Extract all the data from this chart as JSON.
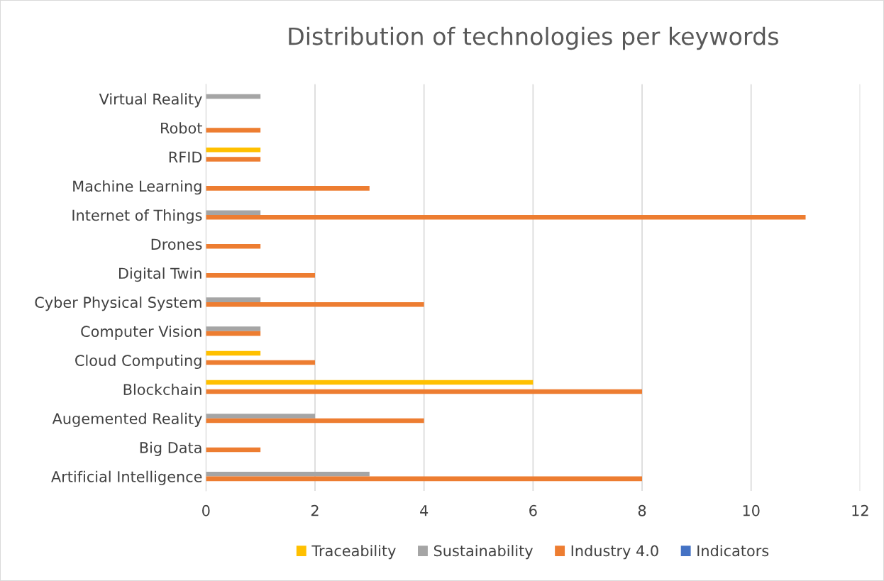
{
  "chart_data": {
    "type": "bar",
    "orientation": "horizontal",
    "title": "Distribution of technologies per keywords",
    "categories": [
      "Virtual Reality",
      "Robot",
      "RFID",
      "Machine Learning",
      "Internet of Things",
      "Drones",
      "Digital Twin",
      "Cyber Physical System",
      "Computer Vision",
      "Cloud Computing",
      "Blockchain",
      "Augemented Reality",
      "Big Data",
      "Artificial Intelligence"
    ],
    "series": [
      {
        "name": "Traceability",
        "color": "#ffc000",
        "values": [
          null,
          null,
          1,
          null,
          null,
          null,
          null,
          null,
          null,
          1,
          6,
          null,
          null,
          null
        ]
      },
      {
        "name": "Sustainability",
        "color": "#a5a5a5",
        "values": [
          1,
          null,
          null,
          null,
          1,
          null,
          null,
          1,
          1,
          null,
          null,
          2,
          null,
          3
        ]
      },
      {
        "name": "Industry 4.0",
        "color": "#ed7d31",
        "values": [
          null,
          1,
          1,
          3,
          11,
          1,
          2,
          4,
          1,
          2,
          8,
          4,
          1,
          8
        ]
      },
      {
        "name": "Indicators",
        "color": "#4472c4",
        "values": [
          null,
          null,
          null,
          null,
          null,
          null,
          null,
          null,
          null,
          null,
          null,
          null,
          null,
          null
        ]
      }
    ],
    "xlim": [
      0,
      12
    ],
    "xticks": [
      0,
      2,
      4,
      6,
      8,
      10,
      12
    ],
    "grid": "x",
    "legend": "bottom"
  }
}
